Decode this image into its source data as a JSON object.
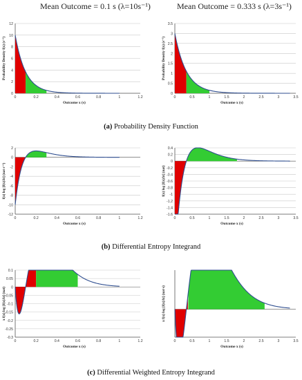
{
  "headers": {
    "left": "Mean Outcome = 0.1 s (λ=10s⁻¹)",
    "right": "Mean Outcome = 0.333 s (λ=3s⁻¹)"
  },
  "captions": [
    {
      "letter": "(a)",
      "text": "Probability Density Function"
    },
    {
      "letter": "(b)",
      "text": "Differential Entropy Integrand"
    },
    {
      "letter": "(c)",
      "text": "Differential Weighted Entropy Integrand"
    }
  ],
  "colors": {
    "curve": "#2e4d8f",
    "fill_red": "#e00000",
    "fill_green": "#33cc33",
    "grid": "#c8c8c8",
    "axis": "#555555"
  },
  "chart_data": [
    {
      "id": "pdf-lambda10",
      "type": "area",
      "lambda": 10,
      "func": "pdf",
      "xlabel": "Outcome x (s)",
      "ylabel": "Probability Density f(x) (s⁻¹)",
      "xlim": [
        0,
        1.2
      ],
      "ylim": [
        0,
        12
      ],
      "xticks": [
        0,
        0.2,
        0.4,
        0.6,
        0.8,
        1,
        1.2
      ],
      "xtick_labels": [
        "0",
        "0.2",
        "0.4",
        "0.6",
        "0.8",
        "1",
        "1.2"
      ],
      "yticks": [
        0,
        2,
        4,
        6,
        8,
        10,
        12
      ],
      "ytick_labels": [
        "0",
        "2",
        "4",
        "6",
        "8",
        "10",
        "12"
      ],
      "curve_x_max": 1.0,
      "fill_split_x": 0.1,
      "fill_end_x": 0.3,
      "x": [
        0,
        0.05,
        0.1,
        0.15,
        0.2,
        0.3,
        0.4,
        0.6,
        0.8,
        1.0
      ],
      "y": [
        10,
        6.07,
        3.68,
        2.23,
        1.35,
        0.5,
        0.18,
        0.02,
        0.003,
        0.0005
      ]
    },
    {
      "id": "pdf-lambda3",
      "type": "area",
      "lambda": 3,
      "func": "pdf",
      "xlabel": "Outcome x (s)",
      "ylabel": "Probability Density f(x) (s⁻¹)",
      "xlim": [
        0,
        3.5
      ],
      "ylim": [
        0,
        3.5
      ],
      "xticks": [
        0,
        0.5,
        1,
        1.5,
        2,
        2.5,
        3,
        3.5
      ],
      "xtick_labels": [
        "0",
        "0.5",
        "1",
        "1.5",
        "2",
        "2.5",
        "3",
        "3.5"
      ],
      "yticks": [
        0,
        0.5,
        1,
        1.5,
        2,
        2.5,
        3,
        3.5
      ],
      "ytick_labels": [
        "0",
        "0.5",
        "1",
        "1.5",
        "2",
        "2.5",
        "3",
        "3.5"
      ],
      "curve_x_max": 3.33,
      "fill_split_x": 0.333,
      "fill_end_x": 1.0,
      "x": [
        0,
        0.25,
        0.5,
        0.75,
        1.0,
        1.5,
        2.0,
        2.5,
        3.0,
        3.33
      ],
      "y": [
        3,
        1.42,
        0.67,
        0.32,
        0.15,
        0.033,
        0.0074,
        0.0017,
        0.0004,
        0.0001
      ]
    },
    {
      "id": "entropy-lambda10",
      "type": "area",
      "lambda": 10,
      "func": "entropy",
      "xlabel": "Outcome x (s)",
      "ylabel": "f(x) log [f(x)Δt] (nat s⁻¹)",
      "xlim": [
        0,
        1.2
      ],
      "ylim": [
        -12,
        2
      ],
      "xticks": [
        0,
        0.2,
        0.4,
        0.6,
        0.8,
        1,
        1.2
      ],
      "xtick_labels": [
        "0",
        "0.2",
        "0.4",
        "0.6",
        "0.8",
        "1",
        "1.2"
      ],
      "yticks": [
        -12,
        -10,
        -8,
        -6,
        -4,
        -2,
        0,
        2
      ],
      "ytick_labels": [
        "-12",
        "-10",
        "-8",
        "-6",
        "-4",
        "-2",
        "0",
        "2"
      ],
      "curve_x_max": 1.0,
      "fill_split_x": 0.1,
      "fill_end_x": 0.3,
      "x": [
        0,
        0.05,
        0.1,
        0.15,
        0.2,
        0.3,
        0.4,
        0.6,
        0.8,
        1.0
      ],
      "y": [
        -9.3,
        -3.7,
        -0.9,
        0.06,
        0.16,
        0.07,
        0.02,
        0.0,
        0.0,
        0.0
      ]
    },
    {
      "id": "entropy-lambda3",
      "type": "area",
      "lambda": 3,
      "func": "entropy",
      "xlabel": "Outcome x (s)",
      "ylabel": "f(x) log [f(x)Δt] (nat)",
      "xlim": [
        0,
        3.5
      ],
      "ylim": [
        -1.6,
        0.4
      ],
      "xticks": [
        0,
        0.5,
        1,
        1.5,
        2,
        2.5,
        3,
        3.5
      ],
      "xtick_labels": [
        "0",
        "0.5",
        "1",
        "1.5",
        "2",
        "2.5",
        "3",
        "3.5"
      ],
      "yticks": [
        -1.6,
        -1.4,
        -1.2,
        -1,
        -0.8,
        -0.6,
        -0.4,
        -0.2,
        0,
        0.2,
        0.4
      ],
      "ytick_labels": [
        "-1.6",
        "-1.4",
        "-1.2",
        "-1",
        "-0.8",
        "-0.6",
        "-0.4",
        "-0.2",
        "0",
        "0.2",
        "0.4"
      ],
      "curve_x_max": 3.33,
      "fill_split_x": 0.333,
      "fill_end_x": 1.8,
      "x": [
        0,
        0.1,
        0.2,
        0.333,
        0.5,
        0.7,
        1.0,
        1.5,
        2.0,
        3.0
      ],
      "y": [
        -1.3,
        -0.6,
        -0.2,
        0.02,
        0.1,
        0.14,
        0.12,
        0.05,
        0.015,
        0.0
      ]
    },
    {
      "id": "weighted-lambda10",
      "type": "area",
      "lambda": 10,
      "func": "weighted",
      "xlabel": "Outcome x (s)",
      "ylabel": "x f(x) log [f(x)Δt] (nat)",
      "xlim": [
        0,
        1.2
      ],
      "ylim": [
        -0.3,
        0.1
      ],
      "xticks": [
        0,
        0.2,
        0.4,
        0.6,
        0.8,
        1,
        1.2
      ],
      "xtick_labels": [
        "0",
        "0.2",
        "0.4",
        "0.6",
        "0.8",
        "1",
        "1.2"
      ],
      "yticks": [
        -0.3,
        -0.25,
        -0.2,
        -0.15,
        -0.1,
        -0.05,
        0,
        0.05,
        0.1
      ],
      "ytick_labels": [
        "-0.3",
        "-0.25",
        "-0.2",
        "-0.15",
        "-0.1",
        "-0.05",
        "0",
        "0.05",
        "0.1"
      ],
      "curve_x_max": 1.0,
      "fill_split_x": 0.2,
      "fill_end_x": 0.6,
      "x": [
        0,
        0.05,
        0.08,
        0.12,
        0.2,
        0.3,
        0.38,
        0.5,
        0.7,
        1.0
      ],
      "y": [
        0,
        -0.2,
        -0.25,
        -0.2,
        0,
        0.045,
        0.052,
        0.04,
        0.015,
        0.003
      ]
    },
    {
      "id": "weighted-lambda3",
      "type": "area",
      "lambda": 3,
      "func": "weighted",
      "xlabel": "Outcome x (s)",
      "ylabel": "x f(x) log [f(x)Δt] (nat·s)",
      "xlim": [
        0,
        3.5
      ],
      "ylim": [
        -0.1,
        0.14
      ],
      "xticks": [
        0,
        0.5,
        1,
        1.5,
        2,
        2.5,
        3,
        3.5
      ],
      "xtick_labels": [
        "0",
        "0.5",
        "1",
        "1.5",
        "2",
        "2.5",
        "3",
        "3.5"
      ],
      "yticks": [],
      "ytick_labels": [],
      "curve_x_max": 3.33,
      "fill_split_x": 0.38,
      "fill_end_x": 2.6,
      "x": [
        0,
        0.1,
        0.2,
        0.38,
        0.6,
        0.9,
        1.3,
        1.8,
        2.5,
        3.33
      ],
      "y": [
        0,
        -0.06,
        -0.08,
        0,
        0.08,
        0.12,
        0.1,
        0.06,
        0.02,
        0.003
      ]
    }
  ]
}
